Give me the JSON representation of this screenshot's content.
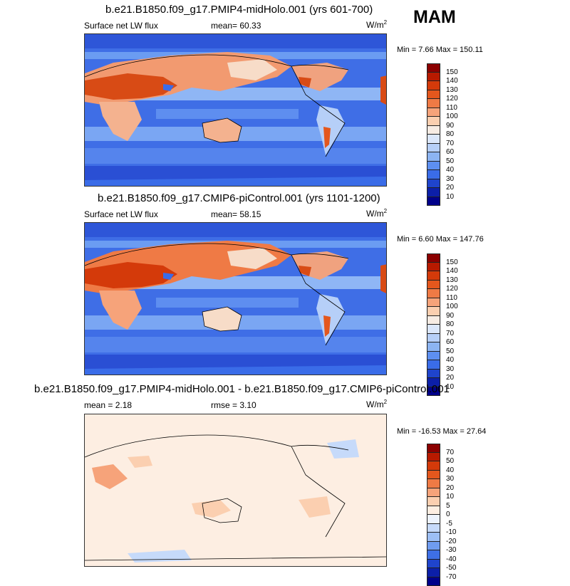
{
  "season": "MAM",
  "units_main": "W/m",
  "units_exp": "2",
  "panels": [
    {
      "title": "b.e21.B1850.f09_g17.PMIP4-midHolo.001 (yrs 601-700)",
      "left_label": "Surface net LW flux",
      "center_label": "mean=  60.33",
      "minmax": "Min =  7.66 Max = 150.11"
    },
    {
      "title": "b.e21.B1850.f09_g17.CMIP6-piControl.001 (yrs 1101-1200)",
      "left_label": "Surface net LW flux",
      "center_label": "mean=  58.15",
      "minmax": "Min =  6.60 Max = 147.76"
    },
    {
      "title": "b.e21.B1850.f09_g17.PMIP4-midHolo.001 - b.e21.B1850.f09_g17.CMIP6-piControl.001",
      "left_label": "mean =   2.18",
      "center_label": "rmse =   3.10",
      "minmax": "Min = -16.53 Max =  27.64"
    }
  ],
  "colorbar_abs": {
    "labels": [
      "150",
      "140",
      "130",
      "120",
      "110",
      "100",
      "90",
      "80",
      "70",
      "60",
      "50",
      "40",
      "30",
      "20",
      "10"
    ],
    "colors": [
      "#8b0000",
      "#b81a00",
      "#d43a0a",
      "#e4571d",
      "#ef7a45",
      "#f6a37a",
      "#fbcfb0",
      "#f7ece4",
      "#dbe7fb",
      "#b6cff8",
      "#8cb4f2",
      "#5d8ff0",
      "#3a6ce8",
      "#1f44cc",
      "#0c1fa8",
      "#00008a"
    ]
  },
  "colorbar_diff": {
    "labels": [
      "70",
      "50",
      "40",
      "30",
      "20",
      "10",
      "5",
      "0",
      "-5",
      "-10",
      "-20",
      "-30",
      "-40",
      "-50",
      "-70"
    ],
    "colors": [
      "#8b0000",
      "#b81a00",
      "#d43a0a",
      "#e4571d",
      "#ef7a45",
      "#f6a37a",
      "#fbcfb0",
      "#fdeee2",
      "#edf3fd",
      "#c6dafa",
      "#9dbff5",
      "#6f9cf0",
      "#3e6fe6",
      "#1f44cc",
      "#0c1fa8",
      "#00008a"
    ]
  }
}
